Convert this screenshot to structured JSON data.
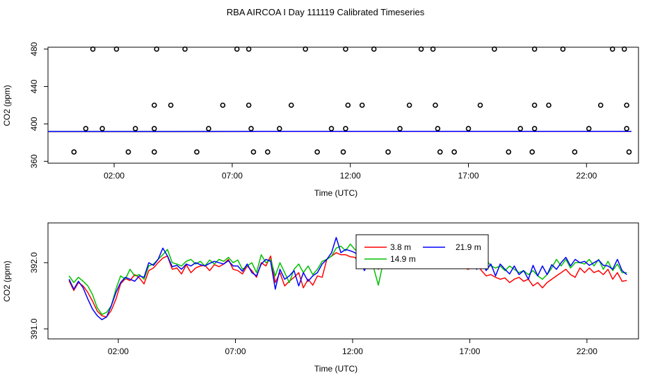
{
  "title": "RBA AIRCOA I  Day 111119  Calibrated Timeseries",
  "colors": {
    "red": "#ff0000",
    "green": "#00c000",
    "blue": "#0000ff"
  },
  "chart_data": [
    {
      "type": "scatter",
      "xlabel": "Time (UTC)",
      "ylabel": "CO2 (ppm)",
      "xlim": [
        -0.8,
        24.2
      ],
      "ylim": [
        358,
        482
      ],
      "x_ticks": [
        2,
        7,
        12,
        17,
        22
      ],
      "x_tick_labels": [
        "02:00",
        "07:00",
        "12:00",
        "17:00",
        "22:00"
      ],
      "y_ticks": [
        360,
        400,
        440,
        480
      ],
      "y_tick_labels": [
        "360",
        "400",
        "440",
        "480"
      ],
      "points": {
        "x": [
          1.1,
          2.1,
          3.8,
          5.0,
          7.2,
          7.7,
          10.1,
          11.8,
          13.0,
          15.0,
          15.5,
          18.1,
          19.8,
          21.0,
          23.1,
          23.6,
          1.5,
          3.7,
          4.4,
          6.6,
          7.7,
          9.5,
          11.9,
          12.5,
          14.5,
          15.6,
          17.5,
          19.8,
          20.4,
          22.6,
          23.7,
          0.8,
          2.9,
          3.7,
          6.0,
          7.8,
          9.0,
          11.2,
          11.8,
          14.1,
          15.7,
          17.0,
          19.2,
          19.8,
          22.1,
          23.7,
          0.3,
          2.6,
          3.7,
          5.5,
          7.9,
          8.5,
          10.6,
          11.7,
          13.6,
          15.8,
          16.4,
          18.7,
          19.7,
          21.5,
          23.8
        ],
        "y": [
          480,
          480,
          480,
          480,
          480,
          480,
          480,
          480,
          480,
          480,
          480,
          480,
          480,
          480,
          480,
          480,
          395,
          420,
          420,
          420,
          420,
          420,
          420,
          420,
          420,
          420,
          420,
          420,
          420,
          420,
          420,
          395,
          395,
          395,
          395,
          395,
          395,
          395,
          395,
          395,
          395,
          395,
          395,
          395,
          395,
          395,
          370,
          370,
          370,
          370,
          370,
          370,
          370,
          370,
          370,
          370,
          370,
          370,
          370,
          370,
          370
        ]
      },
      "lines": [
        {
          "color": "#ff0000",
          "x": [
            -0.8,
            23.9
          ],
          "y": [
            391.8,
            391.9
          ]
        },
        {
          "color": "#00c000",
          "x": [
            -0.8,
            23.9
          ],
          "y": [
            391.9,
            392.0
          ]
        },
        {
          "color": "#0000ff",
          "x": [
            -0.8,
            23.9
          ],
          "y": [
            391.9,
            392.0
          ]
        }
      ]
    },
    {
      "type": "line",
      "xlabel": "Time (UTC)",
      "ylabel": "CO2 (ppm)",
      "xlim": [
        -1,
        24.2
      ],
      "ylim": [
        390.85,
        392.6
      ],
      "x_ticks": [
        2,
        7,
        12,
        17,
        22
      ],
      "x_tick_labels": [
        "02:00",
        "07:00",
        "12:00",
        "17:00",
        "22:00"
      ],
      "y_ticks": [
        391.0,
        392.0
      ],
      "y_tick_labels": [
        "391.0",
        "392.0"
      ],
      "legend": {
        "position": "top-center",
        "labels": [
          "3.8 m",
          "14.9 m",
          "21.9 m"
        ]
      },
      "x": [
        -0.1,
        0.1,
        0.3,
        0.5,
        0.7,
        0.9,
        1.1,
        1.3,
        1.5,
        1.7,
        1.9,
        2.1,
        2.3,
        2.5,
        2.7,
        2.9,
        3.1,
        3.3,
        3.5,
        3.7,
        3.9,
        4.1,
        4.3,
        4.5,
        4.7,
        4.9,
        5.1,
        5.3,
        5.5,
        5.7,
        5.9,
        6.1,
        6.3,
        6.5,
        6.7,
        6.9,
        7.1,
        7.3,
        7.5,
        7.7,
        7.9,
        8.1,
        8.3,
        8.5,
        8.7,
        8.9,
        9.1,
        9.3,
        9.5,
        9.7,
        9.9,
        10.1,
        10.3,
        10.5,
        10.7,
        10.9,
        11.1,
        11.3,
        11.5,
        11.7,
        11.9,
        12.1,
        12.3,
        12.5,
        12.7,
        12.9,
        13.1,
        13.3,
        13.5,
        13.7,
        13.9,
        14.1,
        14.3,
        14.5,
        14.7,
        14.9,
        15.1,
        15.3,
        15.5,
        15.7,
        15.9,
        16.1,
        16.3,
        16.5,
        16.7,
        16.9,
        17.1,
        17.3,
        17.5,
        17.7,
        17.9,
        18.1,
        18.3,
        18.5,
        18.7,
        18.9,
        19.1,
        19.3,
        19.5,
        19.7,
        19.9,
        20.1,
        20.3,
        20.5,
        20.7,
        20.9,
        21.1,
        21.3,
        21.5,
        21.7,
        21.9,
        22.1,
        22.3,
        22.5,
        22.7,
        22.9,
        23.1,
        23.3,
        23.5,
        23.7
      ],
      "series": [
        {
          "name": "3.8 m",
          "color": "#ff0000",
          "values": [
            391.73,
            391.58,
            391.7,
            391.65,
            391.55,
            391.42,
            391.27,
            391.2,
            391.18,
            391.28,
            391.45,
            391.68,
            391.76,
            391.73,
            391.82,
            391.77,
            391.68,
            391.88,
            391.92,
            392.0,
            392.07,
            392.1,
            391.9,
            391.92,
            391.83,
            391.97,
            391.85,
            391.92,
            391.95,
            391.96,
            391.88,
            391.97,
            391.94,
            391.98,
            392.05,
            391.9,
            391.88,
            391.83,
            391.95,
            391.88,
            391.78,
            392.0,
            391.95,
            392.1,
            391.7,
            391.85,
            391.65,
            391.72,
            391.78,
            391.85,
            391.62,
            391.75,
            391.66,
            391.8,
            391.78,
            392.05,
            392.1,
            392.15,
            392.12,
            392.12,
            392.09,
            392.08,
            392.0,
            391.9,
            391.95,
            392.05,
            391.9,
            392.05,
            392.12,
            392.18,
            392.08,
            392.02,
            392.1,
            392.13,
            392.0,
            392.05,
            392.1,
            392.06,
            391.98,
            392.1,
            392.02,
            392.0,
            391.98,
            391.95,
            391.98,
            391.9,
            391.92,
            391.98,
            391.88,
            391.8,
            391.82,
            391.78,
            391.75,
            391.77,
            391.7,
            391.75,
            391.78,
            391.72,
            391.75,
            391.65,
            391.7,
            391.62,
            391.7,
            391.75,
            391.8,
            391.85,
            391.9,
            391.82,
            391.78,
            391.92,
            391.85,
            391.92,
            391.85,
            391.88,
            391.82,
            391.9,
            391.75,
            391.85,
            391.72,
            391.73
          ]
        },
        {
          "name": "14.9 m",
          "color": "#00c000",
          "values": [
            391.8,
            391.7,
            391.78,
            391.72,
            391.65,
            391.52,
            391.32,
            391.22,
            391.25,
            391.35,
            391.6,
            391.8,
            391.75,
            391.9,
            391.8,
            391.82,
            391.75,
            391.95,
            391.98,
            392.05,
            392.12,
            392.2,
            392.0,
            391.98,
            391.95,
            392.02,
            392.05,
            391.98,
            392.02,
            391.95,
            392.04,
            391.98,
            392.05,
            392.02,
            392.08,
            392.0,
            392.04,
            391.9,
            391.95,
            392.0,
            391.85,
            392.12,
            392.0,
            392.05,
            391.8,
            392.0,
            391.85,
            391.7,
            391.9,
            391.98,
            391.85,
            391.95,
            391.82,
            391.9,
            392.02,
            392.05,
            392.1,
            392.22,
            392.25,
            392.18,
            392.28,
            392.2,
            392.15,
            392.08,
            391.95,
            391.92,
            391.66,
            392.0,
            392.05,
            392.15,
            391.95,
            392.02,
            392.05,
            392.15,
            392.1,
            392.0,
            392.15,
            392.12,
            392.06,
            392.12,
            392.15,
            392.0,
            392.05,
            392.12,
            392.08,
            392.1,
            392.05,
            392.15,
            391.98,
            392.05,
            391.95,
            391.92,
            391.95,
            391.88,
            391.95,
            391.9,
            391.85,
            391.88,
            391.82,
            391.88,
            391.8,
            391.75,
            391.82,
            391.92,
            392.05,
            391.95,
            392.05,
            391.92,
            392.0,
            392.0,
            391.98,
            392.05,
            391.95,
            392.05,
            391.9,
            392.02,
            391.88,
            391.98,
            391.85,
            391.85
          ]
        },
        {
          "name": "21.9 m",
          "color": "#0000ff",
          "values": [
            391.75,
            391.6,
            391.72,
            391.62,
            391.45,
            391.3,
            391.2,
            391.14,
            391.18,
            391.35,
            391.55,
            391.7,
            391.78,
            391.75,
            391.72,
            391.8,
            391.78,
            392.0,
            391.96,
            392.05,
            392.22,
            392.1,
            391.94,
            391.96,
            391.9,
            391.98,
            391.95,
            392.0,
            391.97,
            391.95,
            391.99,
            392.02,
            392.0,
            391.98,
            392.03,
            391.95,
            391.95,
            391.87,
            391.98,
            391.85,
            391.8,
            391.98,
            392.05,
            392.02,
            391.6,
            391.9,
            391.75,
            391.8,
            391.88,
            391.65,
            391.85,
            391.72,
            391.8,
            391.85,
            391.98,
            392.05,
            392.15,
            392.38,
            392.15,
            392.2,
            392.18,
            392.15,
            392.1,
            391.88,
            392.0,
            392.05,
            391.93,
            392.15,
            392.22,
            392.12,
            392.05,
            392.15,
            392.02,
            392.08,
            392.15,
            392.12,
            392.05,
            392.1,
            392.0,
            392.15,
            392.02,
            392.05,
            392.03,
            392.05,
            392.02,
            391.97,
            392.08,
            391.9,
            392.05,
            391.88,
            391.98,
            391.8,
            391.98,
            391.9,
            391.83,
            391.95,
            391.82,
            391.88,
            391.75,
            391.96,
            391.8,
            391.95,
            391.82,
            391.97,
            391.9,
            392.0,
            392.08,
            391.95,
            392.05,
            392.0,
            392.02,
            391.96,
            392.0,
            392.04,
            391.96,
            391.95,
            391.9,
            392.05,
            391.88,
            391.82
          ]
        }
      ]
    }
  ]
}
